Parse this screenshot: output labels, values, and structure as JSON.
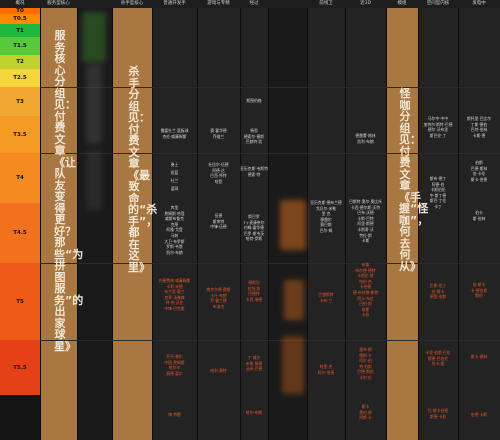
{
  "headers": [
    "概况",
    "服务型核心",
    "",
    "杀手型核心",
    "普通开发手",
    "游戏与专精",
    "经过",
    "",
    "前线卫",
    "近3D",
    "模组",
    "空间型内核",
    "发电中"
  ],
  "tiers": [
    "T0",
    "T0.5",
    "T1",
    "T1.5",
    "T2",
    "T2.5",
    "T3",
    "T3.5",
    "T4",
    "T4.5",
    "T5",
    "T5.5"
  ],
  "tier_colors": [
    "#ff6b00",
    "#ff8a00",
    "#1db83d",
    "#58c93b",
    "#c0d12e",
    "#f5d53b",
    "#f0a62f",
    "#f59a23",
    "#f58a20",
    "#f2711c",
    "#ee5a15",
    "#e64016"
  ],
  "captions": {
    "service": "服务核心分组见：付费文章《让队友变得更好？那些“为拼图服务”的出家球星》",
    "killer": "杀手分组见：付费文章《最致命的“杀手”，都在这里》",
    "mod": "怪咖分组见：付费文章《手握“怪咖”，何去何从》"
  },
  "cells": {
    "c4_t3": [
      "雷霆杜兰·篮板球",
      "杰伦·威廉姆斯",
      "",
      "",
      "",
      "",
      "勇士",
      "",
      "",
      "杜兰"
    ],
    "c4_t3b": [
      "",
      "投篮",
      "",
      "",
      "篮网"
    ],
    "c4_t4": [
      "库里",
      "詹姆斯·哈登",
      "威斯布鲁克",
      "克莱",
      "阿隆·戈登",
      "马刺",
      "大卫·布罗斯",
      "罗斯·韦恩",
      "凯尔·布朗"
    ],
    "c4_t45": [
      "内德费格·威廉姆斯",
      "卡莉·米德",
      "布兰登·戴兰",
      "克莱·汤普森",
      "特·杰·沃伦",
      "中锋·巴克斯"
    ],
    "c4_t5": [
      "乔丹·普尔",
      "中国·詹姆斯",
      "哈尔辛",
      "赛德·富尔"
    ],
    "c4_t55": [
      "梅·特雷"
    ],
    "c5_t3": [
      "赛·霍华德",
      "乔维兰"
    ],
    "c5_t35": [
      "杜拉尔·伍德",
      "阿德·达",
      "巴西·怀特",
      "哈登"
    ],
    "c5_t4": [
      "伍德",
      "斯库特",
      "中锋·伍德"
    ],
    "c5_t45": [
      "席克尔德·赛斯",
      "卡什·布朗",
      "乔·霍兰德",
      "布洛克"
    ],
    "c5_t5": [
      "哈利·赛特"
    ],
    "c6_t25": [
      "斯图伯格"
    ],
    "c6_t3": [
      "杨思",
      "德索尔·塞斯",
      "巴赫特·凯"
    ],
    "c6_t35": [
      "亚历克斯·韦斯特",
      "德索·特"
    ],
    "c6_t4": [
      "斯巴罗",
      "T·J·麦康奈尔",
      "约翰·霍华德",
      "巴罗·斯韦茨",
      "哈特·伊斯"
    ],
    "c6_t45": [
      "德斯坦",
      "拉坦·凯",
      "巴德特",
      "卡西·瑞德"
    ],
    "c6_t5": [
      "丁·威尔",
      "布鲁·莫德",
      "汤米·巴德"
    ],
    "c6_t55": [
      "哈尔·布朗"
    ],
    "c8_t4": [
      "亚历克斯·德布兰德",
      "戈贝尔·米勒",
      "里·克",
      "穆雷尔",
      "赛巴斯",
      "巴尔·姆"
    ],
    "c8_t45": [
      "巴雷斯特",
      "卡布·兰"
    ],
    "c8_t5": [
      "哈里·杰",
      "阿尔·伯德"
    ],
    "c9_t3": [
      "德雷蒙·格林",
      "凯利·布朗"
    ],
    "c9_t4": [
      "巴斯特·奥尔·奥比托",
      "卡西·德尔斯·沃特",
      "巴布·沃德",
      "卡斯·巴特",
      "阿里·斯德",
      "卡斯蒂·沃",
      "劳拉·斯",
      "卡斯"
    ],
    "c9_t45": [
      "布鲁",
      "布尔德·德特",
      "卡斯伦·斯",
      "哈伯·杰",
      "卡伯德",
      "德·布拉德·斯特",
      "阿卡·布伦",
      "巴伯·斯",
      "伯斯",
      "卡伯"
    ],
    "c9_t5": [
      "奥布·斯",
      "德斯·卡",
      "阿尔·伯",
      "特·伯斯",
      "巴德·斯伯",
      "卡尔·伦"
    ],
    "c9_t55": [
      "斯卡",
      "奥伯·德",
      "阿斯·卡"
    ],
    "c11_t3": [
      "马尔中·中中",
      "加特尔·斯特·巴德",
      "德尔·沃布里",
      "斯巴伦·丁"
    ],
    "c11_t4": [
      "斯布·德丁",
      "阿德·伯",
      "卡斯伯伦",
      "中·斯丁德",
      "斯巴·丁伦",
      "卡丁"
    ],
    "c11_t45": [
      "巴斯·伦丁",
      "伯·斯卡",
      "德里·伯斯"
    ],
    "c11_t5": [
      "卡里·伯斯·巴伦",
      "斯德·巴伯伦",
      "伯卡·斯"
    ],
    "c11_t55": [
      "巴·斯卡伯德",
      "斯德·卡伯"
    ],
    "c12_t3": [
      "斯托里·巴比尔",
      "丁斯·德伯",
      "巴特·伯林",
      "卡斯·德"
    ],
    "c12_t35": [
      "伯斯",
      "巴德·斯林",
      "伯·卡伦",
      "斯卡·伯德"
    ],
    "c12_t4": [
      "伯卡",
      "斯·伯林"
    ],
    "c12_t45": [
      "伯·斯卡",
      "卡·德伯斯",
      "斯伯"
    ],
    "c12_t5": [
      "斯卡·德林"
    ],
    "c12_t55": [
      "伯德·卡斯"
    ]
  }
}
